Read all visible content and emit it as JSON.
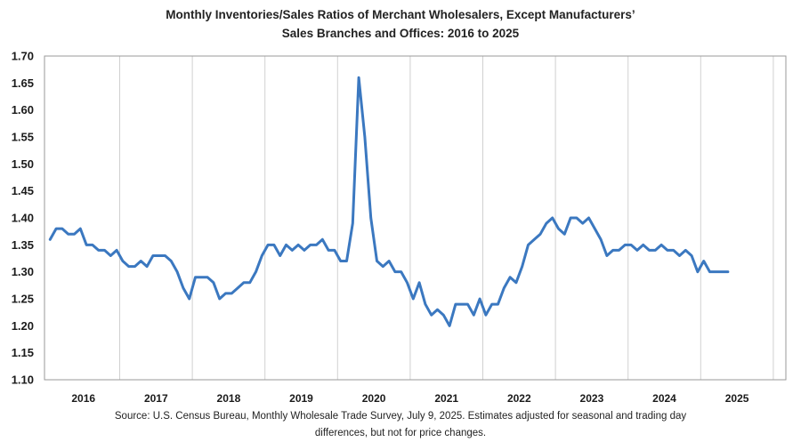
{
  "chart_data": {
    "type": "line",
    "title_line1": "Monthly Inventories/Sales Ratios of Merchant Wholesalers, Except Manufacturers’",
    "title_line2": "Sales Branches and Offices: 2016 to 2025",
    "xlabel": "",
    "ylabel": "",
    "ylim": [
      1.1,
      1.7
    ],
    "yticks": [
      "1.70",
      "1.65",
      "1.60",
      "1.55",
      "1.50",
      "1.45",
      "1.40",
      "1.35",
      "1.30",
      "1.25",
      "1.20",
      "1.15",
      "1.10"
    ],
    "x_tick_labels": [
      "2016",
      "2017",
      "2018",
      "2019",
      "2020",
      "2021",
      "2022",
      "2023",
      "2024",
      "2025"
    ],
    "grid": "vertical lines at year boundaries",
    "legend": "none",
    "line_color": "#3b78c0",
    "series": [
      {
        "start": "2016-01",
        "values": [
          1.36,
          1.38,
          1.38,
          1.37,
          1.37,
          1.38,
          1.35,
          1.35,
          1.34,
          1.34,
          1.33,
          1.34,
          1.32,
          1.31,
          1.31,
          1.32,
          1.31,
          1.33,
          1.33,
          1.33,
          1.32,
          1.3,
          1.27,
          1.25,
          1.29,
          1.29,
          1.29,
          1.28,
          1.25,
          1.26,
          1.26,
          1.27,
          1.28,
          1.28,
          1.3,
          1.33,
          1.35,
          1.35,
          1.33,
          1.35,
          1.34,
          1.35,
          1.34,
          1.35,
          1.35,
          1.36,
          1.34,
          1.34,
          1.32,
          1.32,
          1.39,
          1.66,
          1.55,
          1.4,
          1.32,
          1.31,
          1.32,
          1.3,
          1.3,
          1.28,
          1.25,
          1.28,
          1.24,
          1.22,
          1.23,
          1.22,
          1.2,
          1.24,
          1.24,
          1.24,
          1.22,
          1.25,
          1.22,
          1.24,
          1.24,
          1.27,
          1.29,
          1.28,
          1.31,
          1.35,
          1.36,
          1.37,
          1.39,
          1.4,
          1.38,
          1.37,
          1.4,
          1.4,
          1.39,
          1.4,
          1.38,
          1.36,
          1.33,
          1.34,
          1.34,
          1.35,
          1.35,
          1.34,
          1.35,
          1.34,
          1.34,
          1.35,
          1.34,
          1.34,
          1.33,
          1.34,
          1.33,
          1.3,
          1.32,
          1.3,
          1.3,
          1.3,
          1.3
        ]
      }
    ]
  },
  "source_line1": "Source: U.S. Census Bureau, Monthly Wholesale Trade Survey, July 9, 2025. Estimates adjusted for seasonal and trading day",
  "source_line2": "differences, but not for price changes."
}
